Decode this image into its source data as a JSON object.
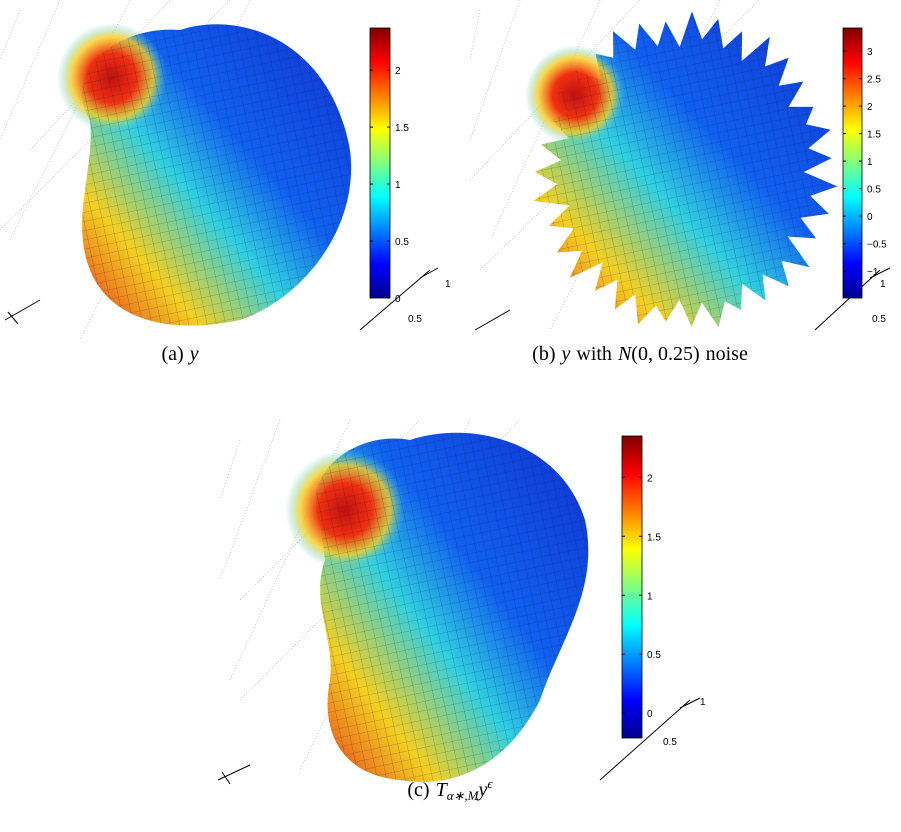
{
  "panels": [
    {
      "caption": {
        "label": "(a)",
        "parts": [
          {
            "text": "y",
            "italic": true
          }
        ]
      },
      "colorbar": {
        "lim": [
          0,
          2.37
        ],
        "ticks": [
          0,
          0.5,
          1,
          1.5,
          2
        ]
      },
      "axis_ticks": [
        "1",
        "0.5"
      ]
    },
    {
      "caption": {
        "label": "(b)",
        "parts": [
          {
            "text": "y",
            "italic": true
          },
          {
            "text": "with"
          },
          {
            "text": "N",
            "italic": true
          },
          {
            "text": "(0, 0.25)"
          },
          {
            "text": "noise"
          }
        ]
      },
      "colorbar": {
        "lim": [
          -1.49,
          3.42
        ],
        "ticks": [
          {
            "value": -1,
            "label": "−1"
          },
          {
            "value": -0.5,
            "label": "−0.5"
          },
          0,
          0.5,
          1,
          1.5,
          2,
          2.5,
          3
        ]
      },
      "axis_ticks": [
        "1",
        "0.5"
      ]
    },
    {
      "caption": {
        "label": "(c)",
        "parts": [
          {
            "text": "T",
            "italic": true
          },
          {
            "text": "α∗,M",
            "italic": true,
            "sub": true
          },
          {
            "text": "y",
            "italic": true
          },
          {
            "text": "ϵ",
            "italic": true,
            "sup": true
          }
        ]
      },
      "colorbar": {
        "lim": [
          -0.21,
          2.35
        ],
        "ticks": [
          0,
          0.5,
          1,
          1.5,
          2
        ]
      },
      "axis_ticks": [
        "1",
        "0.5"
      ]
    }
  ]
}
